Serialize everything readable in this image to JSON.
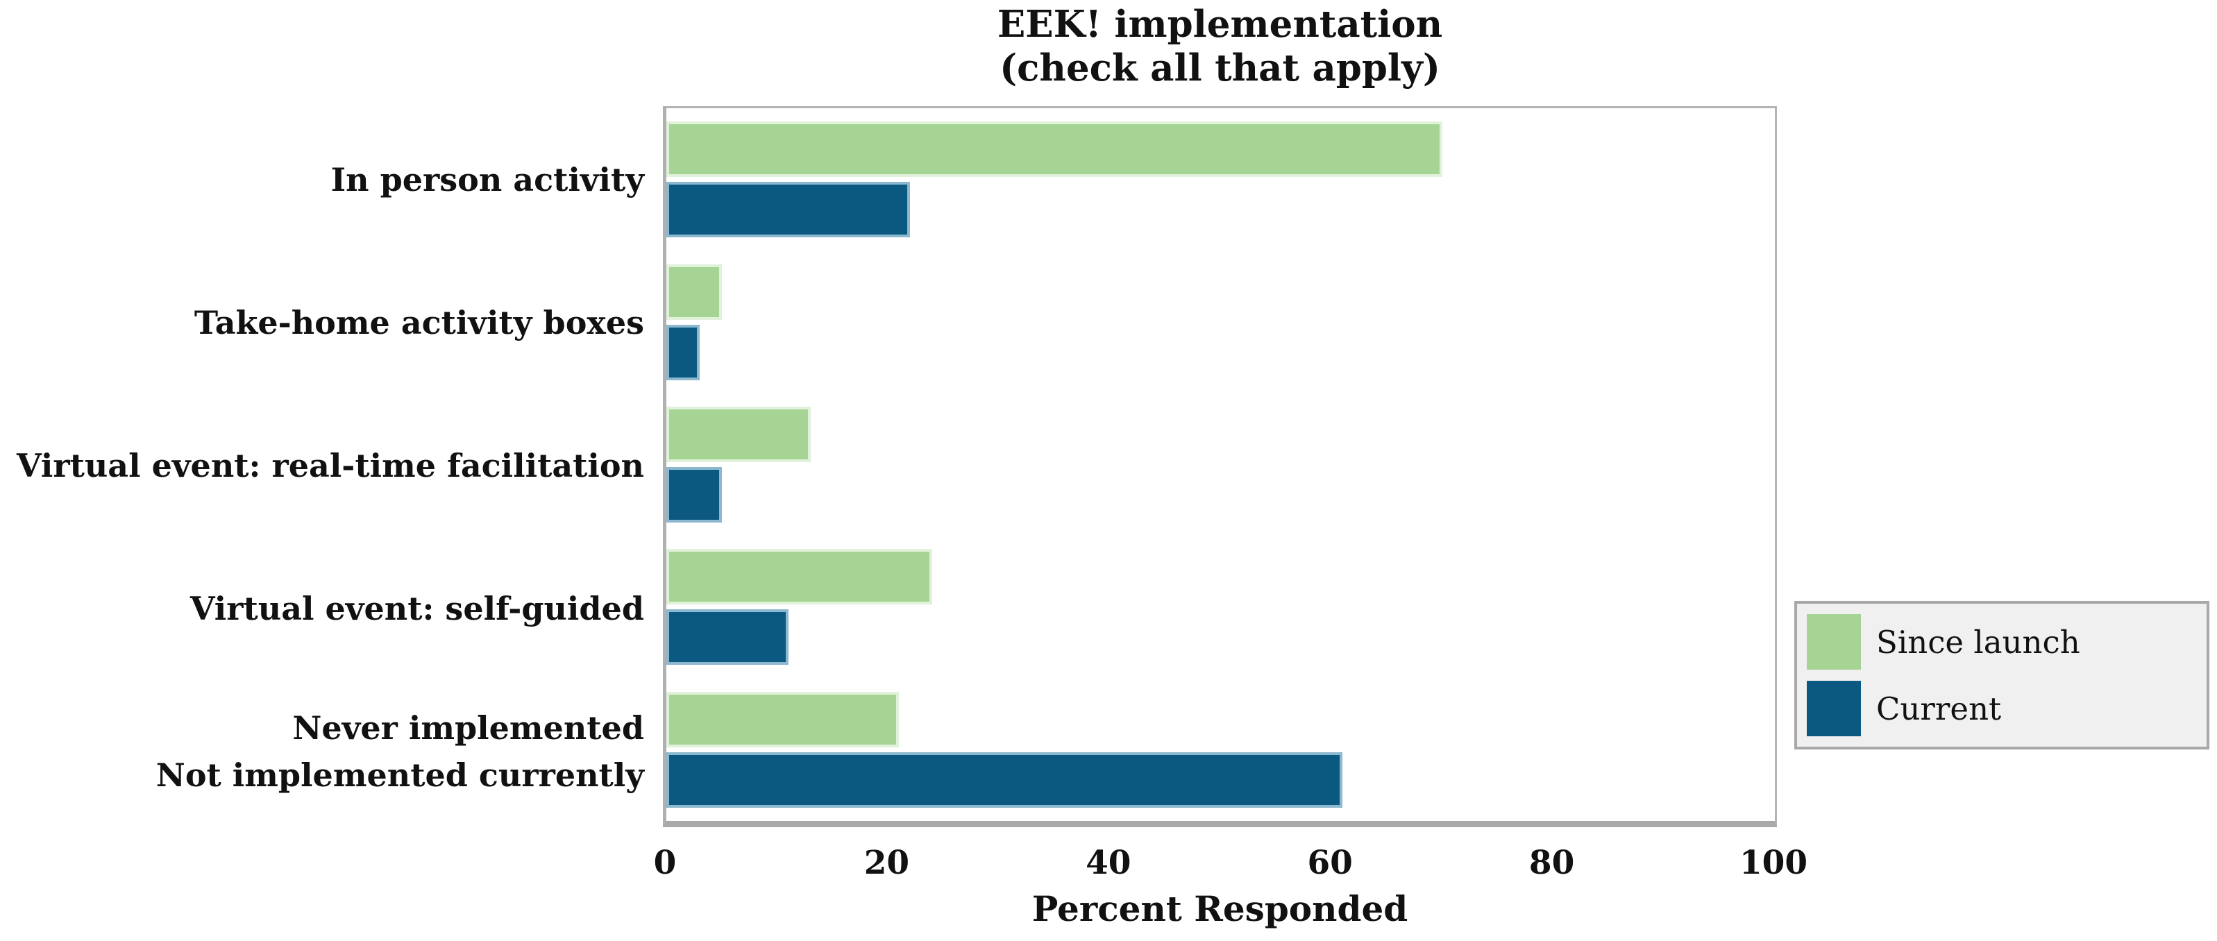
{
  "chart_data": {
    "type": "bar",
    "orientation": "horizontal",
    "title": "EEK! implementation",
    "subtitle": "(check all that apply)",
    "xlabel": "Percent Responded",
    "xlim": [
      0,
      100
    ],
    "xticks": [
      0,
      20,
      40,
      60,
      80,
      100
    ],
    "grid": false,
    "legend_position": "right",
    "categories": [
      {
        "lines": [
          "In person activity"
        ]
      },
      {
        "lines": [
          "Take-home activity boxes"
        ]
      },
      {
        "lines": [
          "Virtual event: real-time facilitation"
        ]
      },
      {
        "lines": [
          "Virtual event: self-guided"
        ]
      },
      {
        "lines": [
          "Never implemented",
          "Not implemented currently"
        ]
      }
    ],
    "series": [
      {
        "name": "Since launch",
        "color": "#a6d494",
        "edge_color": "#e2f1da",
        "values": [
          70,
          5,
          13,
          24,
          21
        ]
      },
      {
        "name": "Current",
        "color": "#0b5880",
        "edge_color": "#8cb9cf",
        "values": [
          22,
          3,
          5,
          11,
          61
        ]
      }
    ]
  },
  "colors": {
    "plot_border": "#b4b4b4",
    "axis_line": "#a9a9a9",
    "legend_background": "#f0f0f0",
    "legend_border": "#a8a8a8",
    "text": "#111111"
  }
}
